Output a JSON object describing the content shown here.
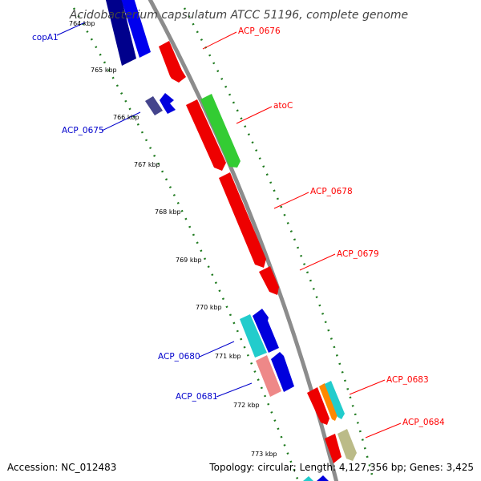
{
  "title": "Acidobacterium capsulatum ATCC 51196, complete genome",
  "footer": {
    "accession": "Accession: NC_012483",
    "topology": "Topology: circular; Length: 4,127,356 bp; Genes: 3,425"
  },
  "colors": {
    "backbone": "#8c8c8c",
    "gc_dots": "#1e7a1e",
    "forward_label": "#ff0000",
    "reverse_label": "#0000cc"
  },
  "kbp_ticks": [
    {
      "label": "764 kbp",
      "kbp": 764
    },
    {
      "label": "765 kbp",
      "kbp": 765
    },
    {
      "label": "766 kbp",
      "kbp": 766
    },
    {
      "label": "767 kbp",
      "kbp": 767
    },
    {
      "label": "768 kbp",
      "kbp": 768
    },
    {
      "label": "769 kbp",
      "kbp": 769
    },
    {
      "label": "770 kbp",
      "kbp": 770
    },
    {
      "label": "771 kbp",
      "kbp": 771
    },
    {
      "label": "772 kbp",
      "kbp": 772
    },
    {
      "label": "773 kbp",
      "kbp": 773
    }
  ],
  "gene_labels": [
    {
      "name": "copA1",
      "strand": "reverse"
    },
    {
      "name": "ACP_0676",
      "strand": "forward"
    },
    {
      "name": "atoC",
      "strand": "forward"
    },
    {
      "name": "ACP_0675",
      "strand": "reverse"
    },
    {
      "name": "ACP_0678",
      "strand": "forward"
    },
    {
      "name": "ACP_0679",
      "strand": "forward"
    },
    {
      "name": "ACP_0680",
      "strand": "reverse"
    },
    {
      "name": "ACP_0681",
      "strand": "reverse"
    },
    {
      "name": "ACP_0683",
      "strand": "forward"
    },
    {
      "name": "ACP_0684",
      "strand": "forward"
    }
  ]
}
